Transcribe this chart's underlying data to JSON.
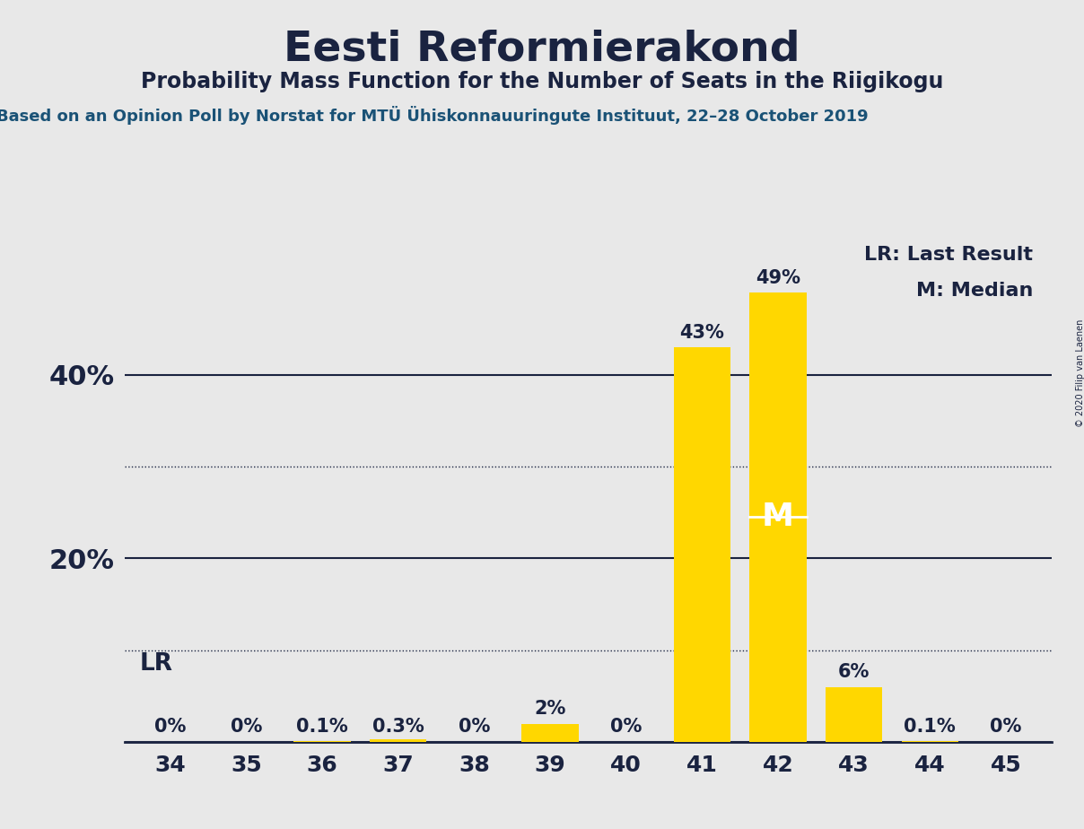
{
  "title": "Eesti Reformierakond",
  "subtitle": "Probability Mass Function for the Number of Seats in the Riigikogu",
  "source_line": "Based on an Opinion Poll by Norstat for MTU Ühiskonnauuringute Instituut, 22–28 October 2019",
  "copyright": "© 2020 Filip van Laenen",
  "categories": [
    34,
    35,
    36,
    37,
    38,
    39,
    40,
    41,
    42,
    43,
    44,
    45
  ],
  "values": [
    0.0,
    0.0,
    0.001,
    0.003,
    0.0,
    0.02,
    0.0,
    0.43,
    0.49,
    0.06,
    0.001,
    0.0
  ],
  "bar_labels": [
    "0%",
    "0%",
    "0.1%",
    "0.3%",
    "0%",
    "2%",
    "0%",
    "43%",
    "49%",
    "6%",
    "0.1%",
    "0%"
  ],
  "bar_color": "#FFD700",
  "median_seat": 42,
  "lr_seat": 42,
  "lr_label": "LR",
  "median_label": "M",
  "legend_lr": "LR: Last Result",
  "legend_m": "M: Median",
  "background_color": "#E8E8E8",
  "ylim": [
    0,
    0.56
  ],
  "solid_yticks": [
    0.0,
    0.2,
    0.4
  ],
  "dotted_yticks": [
    0.1,
    0.3
  ],
  "title_fontsize": 34,
  "subtitle_fontsize": 17,
  "source_fontsize": 13,
  "bar_label_fontsize": 15,
  "tick_fontsize": 18,
  "ytick_fontsize": 22,
  "legend_fontsize": 16,
  "text_color": "#1a2340"
}
